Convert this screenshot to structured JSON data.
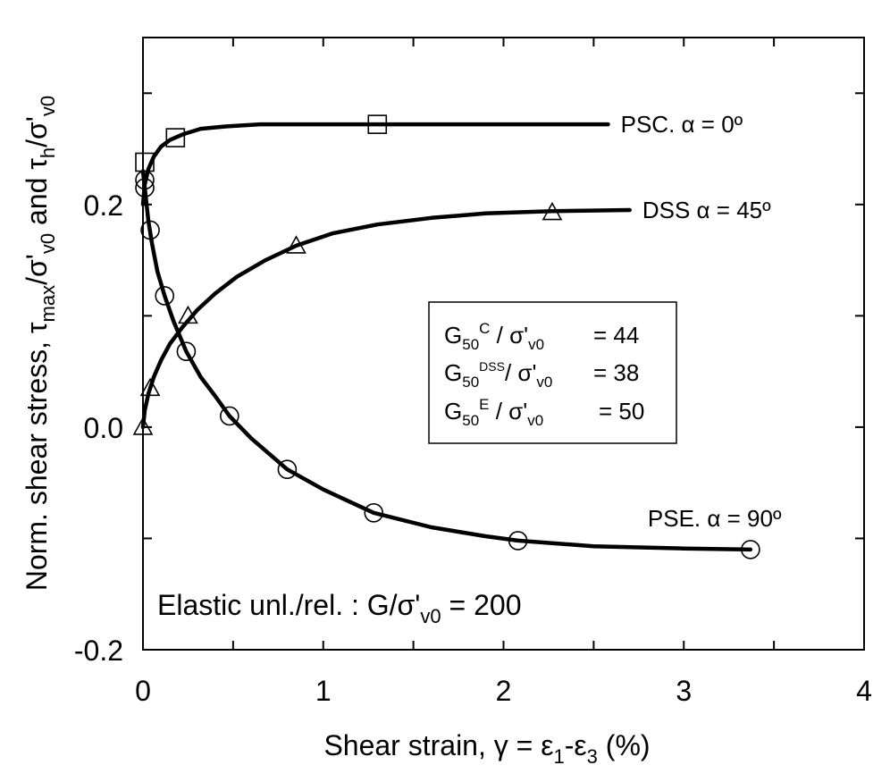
{
  "chart_data": {
    "type": "scatter",
    "xlabel": "Shear strain, γ = ε1-ε3 (%)",
    "ylabel": "Norm. shear stress, τmax/σ'v0 and τh/σ'v0",
    "xlim": [
      0,
      4
    ],
    "ylim": [
      -0.2,
      0.35
    ],
    "x_ticks": [
      "0",
      "1",
      "2",
      "3",
      "4"
    ],
    "y_ticks": [
      "-0.2",
      "0.0",
      "0.2"
    ],
    "grid": false,
    "series": [
      {
        "name": "PSC. α = 0º",
        "marker": "square",
        "points": [
          [
            0.01,
            0.238
          ],
          [
            0.18,
            0.26
          ],
          [
            1.3,
            0.272
          ]
        ],
        "curve": [
          [
            0.0,
            0.2
          ],
          [
            0.01,
            0.218
          ],
          [
            0.03,
            0.232
          ],
          [
            0.06,
            0.243
          ],
          [
            0.1,
            0.252
          ],
          [
            0.15,
            0.258
          ],
          [
            0.22,
            0.263
          ],
          [
            0.32,
            0.268
          ],
          [
            0.45,
            0.27
          ],
          [
            0.65,
            0.272
          ],
          [
            1.0,
            0.272
          ],
          [
            1.6,
            0.272
          ],
          [
            2.2,
            0.272
          ],
          [
            2.58,
            0.272
          ]
        ]
      },
      {
        "name": "DSS α = 45º",
        "marker": "triangle",
        "points": [
          [
            0.0,
            0.0
          ],
          [
            0.04,
            0.035
          ],
          [
            0.25,
            0.1
          ],
          [
            0.85,
            0.163
          ],
          [
            2.27,
            0.193
          ]
        ],
        "curve": [
          [
            0.0,
            0.0
          ],
          [
            0.01,
            0.015
          ],
          [
            0.03,
            0.03
          ],
          [
            0.06,
            0.045
          ],
          [
            0.1,
            0.06
          ],
          [
            0.15,
            0.075
          ],
          [
            0.22,
            0.09
          ],
          [
            0.3,
            0.105
          ],
          [
            0.4,
            0.12
          ],
          [
            0.52,
            0.135
          ],
          [
            0.68,
            0.15
          ],
          [
            0.85,
            0.163
          ],
          [
            1.05,
            0.174
          ],
          [
            1.3,
            0.182
          ],
          [
            1.6,
            0.188
          ],
          [
            1.9,
            0.192
          ],
          [
            2.27,
            0.194
          ],
          [
            2.7,
            0.195
          ]
        ]
      },
      {
        "name": "PSE. α = 90º",
        "marker": "circle",
        "points": [
          [
            0.01,
            0.215
          ],
          [
            0.01,
            0.222
          ],
          [
            0.04,
            0.177
          ],
          [
            0.12,
            0.118
          ],
          [
            0.24,
            0.068
          ],
          [
            0.48,
            0.01
          ],
          [
            0.8,
            -0.038
          ],
          [
            1.28,
            -0.077
          ],
          [
            2.08,
            -0.102
          ],
          [
            3.37,
            -0.11
          ]
        ],
        "curve": [
          [
            0.0,
            0.23
          ],
          [
            0.01,
            0.215
          ],
          [
            0.03,
            0.185
          ],
          [
            0.05,
            0.165
          ],
          [
            0.08,
            0.14
          ],
          [
            0.12,
            0.118
          ],
          [
            0.17,
            0.095
          ],
          [
            0.24,
            0.068
          ],
          [
            0.32,
            0.045
          ],
          [
            0.4,
            0.028
          ],
          [
            0.48,
            0.01
          ],
          [
            0.6,
            -0.01
          ],
          [
            0.8,
            -0.038
          ],
          [
            1.0,
            -0.056
          ],
          [
            1.28,
            -0.077
          ],
          [
            1.6,
            -0.09
          ],
          [
            1.9,
            -0.098
          ],
          [
            2.08,
            -0.102
          ],
          [
            2.5,
            -0.107
          ],
          [
            3.0,
            -0.109
          ],
          [
            3.37,
            -0.11
          ]
        ]
      }
    ],
    "series_labels": [
      {
        "text": "PSC. α = 0º",
        "x": 2.65,
        "y": 0.272
      },
      {
        "text": "DSS α = 45º",
        "x": 2.77,
        "y": 0.195
      },
      {
        "text": "PSE. α = 90º",
        "x": 2.8,
        "y": -0.082
      }
    ],
    "legend_box": {
      "lines": [
        "G50C / σ'v0     = 44",
        "G50DSS/ σ'v0  = 38",
        "G50E / σ'v0      = 50"
      ]
    },
    "annotation": "Elastic unl./rel. : G/σ'v0 = 200"
  }
}
